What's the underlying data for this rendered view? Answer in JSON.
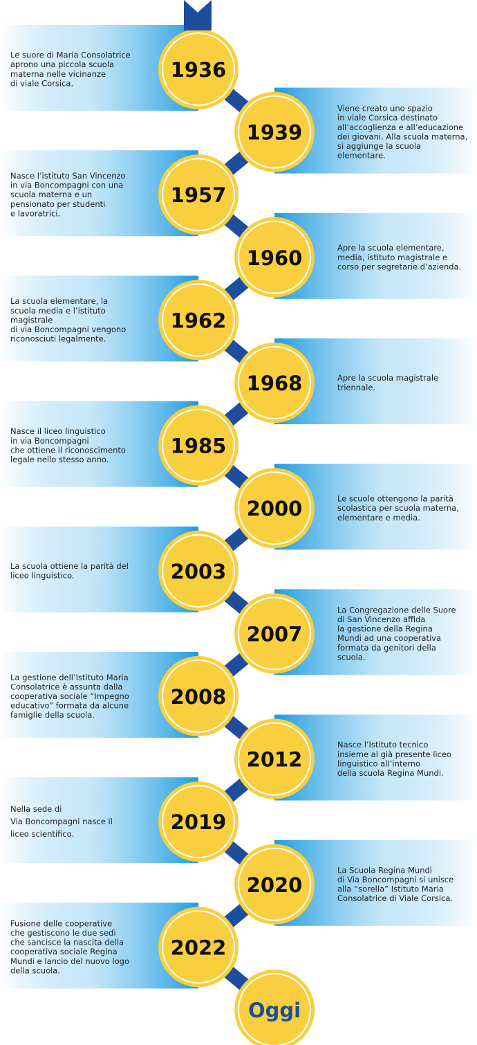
{
  "events": [
    {
      "year": "1936",
      "lines": [
        "Le suore di Maria Consolatrice",
        "aprono una piccola scuola",
        "materna nelle vicinanze",
        "di viale Corsica."
      ]
    },
    {
      "year": "1939",
      "lines": [
        "Viene creato uno spazio",
        "in viale Corsica destinato",
        "all’accoglienza e all’educazione",
        "dei giovani. Alla scuola materna,",
        "si aggiunge la scuola",
        "elementare."
      ]
    },
    {
      "year": "1957",
      "lines": [
        "Nasce l’istituto San Vincenzo",
        "in via Boncompagni con una",
        "scuola materna e un",
        "pensionato per studenti",
        "e lavoratrici."
      ]
    },
    {
      "year": "1960",
      "lines": [
        "Apre la scuola elementare,",
        "media, istituto magistrale e",
        "corso per segretarie d’azienda."
      ]
    },
    {
      "year": "1962",
      "lines": [
        "La scuola elementare, la",
        "scuola media e l’istituto",
        "magistrale",
        "di via Boncompagni vengono",
        "riconosciuti legalmente."
      ]
    },
    {
      "year": "1968",
      "lines": [
        "Apre la scuola magistrale",
        "triennale."
      ]
    },
    {
      "year": "1985",
      "lines": [
        "Nasce il liceo linguistico",
        "in via Boncompagni",
        "che ottiene il riconoscimento",
        "legale nello stesso anno."
      ]
    },
    {
      "year": "2000",
      "lines": [
        "Le scuole ottengono la parità",
        "scolastica per scuola materna,",
        "elementare e media."
      ]
    },
    {
      "year": "2003",
      "lines": [
        "La scuola ottiene la parità del",
        "liceo linguistico."
      ]
    },
    {
      "year": "2007",
      "lines": [
        "La Congregazione delle Suore",
        "di San Vincenzo affida",
        "la gestione della  Regina",
        "Mundi ad una cooperativa",
        "formata da genitori della",
        "scuola."
      ]
    },
    {
      "year": "2008",
      "lines": [
        "La gestione dell’Istituto Maria",
        "Consolatrice è assunta dalla",
        "cooperativa sociale “Impegno",
        "educativo” formata da alcune",
        "famiglie della scuola."
      ]
    },
    {
      "year": "2012",
      "lines": [
        "Nasce l’Istituto tecnico",
        "insieme al già presente liceo",
        "linguistico all’interno",
        "della scuola Regina Mundi."
      ]
    },
    {
      "year": "2019",
      "lines": [
        "Nella sede di",
        "Via Boncompagni nasce il",
        "liceo scientifico."
      ]
    },
    {
      "year": "2020",
      "lines": [
        "La Scuola Regina Mundi",
        "di Via Boncompagni si unisce",
        "alla “sorella” Istituto Maria",
        "Consolatrice di Viale Corsica."
      ]
    },
    {
      "year": "2022",
      "lines": [
        "Fusione delle cooperative",
        "che gestiscono le due sedi",
        "che sancisce la nascita della",
        "cooperativa sociale Regina",
        "Mundi e lancio del nuovo logo",
        "della scuola."
      ]
    }
  ],
  "final": "Oggi"
}
